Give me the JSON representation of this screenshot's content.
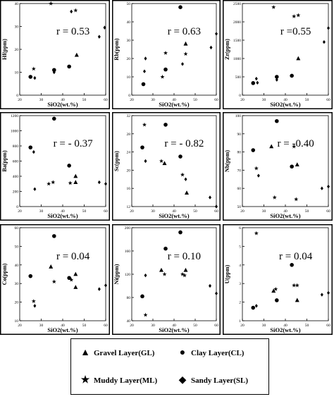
{
  "chart_data": [
    {
      "type": "scatter",
      "xlabel": "SiO2(wt.%)",
      "ylabel": "Hf(ppm)",
      "annotation": "r = 0.53",
      "xlim": [
        20,
        60
      ],
      "ylim": [
        0,
        40
      ],
      "xticks": [
        20,
        30,
        40,
        50,
        60
      ],
      "yticks": [
        0,
        10,
        20,
        30,
        40
      ],
      "series": [
        {
          "name": "Gravel Layer(GL)",
          "marker": "triangle",
          "x": [
            46.5
          ],
          "y": [
            17.5
          ]
        },
        {
          "name": "Clay Layer(CL)",
          "marker": "circle",
          "x": [
            25,
            36,
            43
          ],
          "y": [
            8,
            11,
            12.5
          ]
        },
        {
          "name": "Muddy Layer(ML)",
          "marker": "star",
          "x": [
            34.5,
            26.5,
            46
          ],
          "y": [
            40,
            11.5,
            37
          ]
        },
        {
          "name": "Sandy Layer(SL)",
          "marker": "diamond",
          "x": [
            36,
            27,
            44,
            57,
            59.5
          ],
          "y": [
            10,
            7.5,
            36.5,
            25.5,
            29.5
          ]
        }
      ]
    },
    {
      "type": "scatter",
      "xlabel": "SiO2(wt.%)",
      "ylabel": "Rb(ppm)",
      "annotation": "r = 0.63",
      "xlim": [
        20,
        60
      ],
      "ylim": [
        0,
        50
      ],
      "xticks": [
        20,
        30,
        40,
        50,
        60
      ],
      "yticks": [
        0,
        10,
        20,
        30,
        40,
        50
      ],
      "series": [
        {
          "name": "Gravel Layer(GL)",
          "marker": "triangle",
          "x": [
            45.5
          ],
          "y": [
            28
          ]
        },
        {
          "name": "Clay Layer(CL)",
          "marker": "circle",
          "x": [
            25.5,
            36,
            43
          ],
          "y": [
            6,
            14,
            48
          ]
        },
        {
          "name": "Muddy Layer(ML)",
          "marker": "star",
          "x": [
            36,
            34.5,
            45.5
          ],
          "y": [
            23,
            10,
            22.5
          ]
        },
        {
          "name": "Sandy Layer(SL)",
          "marker": "diamond",
          "x": [
            26.5,
            26,
            44,
            57.5,
            60
          ],
          "y": [
            20,
            13,
            17,
            26,
            33.5
          ]
        }
      ]
    },
    {
      "type": "scatter",
      "xlabel": "SiO2(wt.%)",
      "ylabel": "Zr(ppm)",
      "annotation": "r =0.55",
      "xlim": [
        20,
        60
      ],
      "ylim": [
        0,
        2500
      ],
      "xticks": [
        20,
        30,
        40,
        50,
        60
      ],
      "yticks": [
        0,
        500,
        1000,
        1500,
        2000,
        2500
      ],
      "series": [
        {
          "name": "Gravel Layer(GL)",
          "marker": "triangle",
          "x": [
            46
          ],
          "y": [
            1000
          ]
        },
        {
          "name": "Clay Layer(CL)",
          "marker": "circle",
          "x": [
            25,
            36,
            43
          ],
          "y": [
            330,
            500,
            530
          ]
        },
        {
          "name": "Muddy Layer(ML)",
          "marker": "star",
          "x": [
            34.5,
            44,
            46
          ],
          "y": [
            2400,
            2150,
            2180
          ]
        },
        {
          "name": "Sandy Layer(SL)",
          "marker": "diamond",
          "x": [
            26.5,
            27,
            36,
            58,
            60
          ],
          "y": [
            450,
            340,
            420,
            1450,
            1830
          ]
        }
      ]
    },
    {
      "type": "scatter",
      "xlabel": "SiO2(wt.%)",
      "ylabel": "Ba(ppm)",
      "annotation": "r = - 0.37",
      "xlim": [
        20,
        60
      ],
      "ylim": [
        0,
        1200
      ],
      "xticks": [
        20,
        30,
        40,
        50,
        60
      ],
      "yticks": [
        0,
        200,
        400,
        600,
        800,
        1000,
        1200
      ],
      "series": [
        {
          "name": "Gravel Layer(GL)",
          "marker": "triangle",
          "x": [
            46,
            46
          ],
          "y": [
            400,
            320
          ]
        },
        {
          "name": "Clay Layer(CL)",
          "marker": "circle",
          "x": [
            25,
            36,
            43
          ],
          "y": [
            780,
            1160,
            540
          ]
        },
        {
          "name": "Muddy Layer(ML)",
          "marker": "star",
          "x": [
            33.5,
            35.5,
            43.5
          ],
          "y": [
            300,
            320,
            310
          ]
        },
        {
          "name": "Sandy Layer(SL)",
          "marker": "diamond",
          "x": [
            26.5,
            27,
            57,
            60
          ],
          "y": [
            720,
            230,
            320,
            300
          ]
        }
      ]
    },
    {
      "type": "scatter",
      "xlabel": "SiO2(wt.%)",
      "ylabel": "Sc(ppm)",
      "annotation": "r = - 0.82",
      "xlim": [
        20,
        60
      ],
      "ylim": [
        12,
        32
      ],
      "xticks": [
        20,
        30,
        40,
        50,
        60
      ],
      "yticks": [
        12,
        16,
        20,
        24,
        28,
        32
      ],
      "series": [
        {
          "name": "Gravel Layer(GL)",
          "marker": "triangle",
          "x": [
            35.5,
            46
          ],
          "y": [
            21.5,
            15
          ]
        },
        {
          "name": "Clay Layer(CL)",
          "marker": "circle",
          "x": [
            25,
            36,
            43
          ],
          "y": [
            25,
            30,
            23
          ]
        },
        {
          "name": "Muddy Layer(ML)",
          "marker": "star",
          "x": [
            26,
            34,
            44
          ],
          "y": [
            30,
            22,
            19
          ]
        },
        {
          "name": "Sandy Layer(SL)",
          "marker": "diamond",
          "x": [
            26.5,
            45.5,
            57,
            60
          ],
          "y": [
            22,
            18,
            14,
            12
          ]
        }
      ]
    },
    {
      "type": "scatter",
      "xlabel": "SiO2(wt.%)",
      "ylabel": "Nb(ppm)",
      "annotation": "r = -0.40",
      "xlim": [
        20,
        60
      ],
      "ylim": [
        50,
        100
      ],
      "xticks": [
        20,
        30,
        40,
        50,
        60
      ],
      "yticks": [
        50,
        60,
        70,
        80,
        90,
        100
      ],
      "series": [
        {
          "name": "Gravel Layer(GL)",
          "marker": "triangle",
          "x": [
            33.5,
            45.5
          ],
          "y": [
            83,
            73
          ]
        },
        {
          "name": "Clay Layer(CL)",
          "marker": "circle",
          "x": [
            25,
            36,
            43
          ],
          "y": [
            81,
            97,
            72
          ]
        },
        {
          "name": "Muddy Layer(ML)",
          "marker": "star",
          "x": [
            26.5,
            35,
            44,
            45
          ],
          "y": [
            71,
            55,
            83,
            54
          ]
        },
        {
          "name": "Sandy Layer(SL)",
          "marker": "diamond",
          "x": [
            27.5,
            57,
            60
          ],
          "y": [
            67,
            60,
            61
          ]
        }
      ]
    },
    {
      "type": "scatter",
      "xlabel": "SiO2(wt.%)",
      "ylabel": "Co(ppm)",
      "annotation": "r = 0.04",
      "xlim": [
        20,
        60
      ],
      "ylim": [
        10,
        60
      ],
      "xticks": [
        20,
        30,
        40,
        50,
        60
      ],
      "yticks": [
        10,
        20,
        30,
        40,
        50,
        60
      ],
      "series": [
        {
          "name": "Gravel Layer(GL)",
          "marker": "triangle",
          "x": [
            34.5,
            46,
            46
          ],
          "y": [
            39,
            35,
            28
          ]
        },
        {
          "name": "Clay Layer(CL)",
          "marker": "circle",
          "x": [
            25,
            36,
            43
          ],
          "y": [
            34,
            55.5,
            33
          ]
        },
        {
          "name": "Muddy Layer(ML)",
          "marker": "star",
          "x": [
            26.5,
            36,
            44
          ],
          "y": [
            20.5,
            31,
            32
          ]
        },
        {
          "name": "Sandy Layer(SL)",
          "marker": "diamond",
          "x": [
            27,
            57,
            60
          ],
          "y": [
            18,
            27,
            29
          ]
        }
      ]
    },
    {
      "type": "scatter",
      "xlabel": "SiO2(wt.%)",
      "ylabel": "Ni(ppm)",
      "annotation": "r = 0.10",
      "xlim": [
        20,
        60
      ],
      "ylim": [
        40,
        200
      ],
      "xticks": [
        20,
        30,
        40,
        50,
        60
      ],
      "yticks": [
        40,
        80,
        120,
        160,
        200
      ],
      "series": [
        {
          "name": "Gravel Layer(GL)",
          "marker": "triangle",
          "x": [
            34,
            45.5
          ],
          "y": [
            127,
            127
          ]
        },
        {
          "name": "Clay Layer(CL)",
          "marker": "circle",
          "x": [
            25,
            36,
            43
          ],
          "y": [
            82,
            164,
            192
          ]
        },
        {
          "name": "Muddy Layer(ML)",
          "marker": "star",
          "x": [
            26.5,
            35.5,
            44,
            45
          ],
          "y": [
            50,
            120,
            120,
            118
          ]
        },
        {
          "name": "Sandy Layer(SL)",
          "marker": "diamond",
          "x": [
            26.5,
            57,
            60
          ],
          "y": [
            118,
            100,
            87
          ]
        }
      ]
    },
    {
      "type": "scatter",
      "xlabel": "SiO2(wt.%)",
      "ylabel": "U(ppm)",
      "annotation": "r = 0.04",
      "xlim": [
        20,
        60
      ],
      "ylim": [
        1,
        6
      ],
      "xticks": [
        20,
        30,
        40,
        50,
        60
      ],
      "yticks": [
        1,
        2,
        3,
        4,
        5,
        6
      ],
      "series": [
        {
          "name": "Gravel Layer(GL)",
          "marker": "triangle",
          "x": [
            34.5,
            45.5
          ],
          "y": [
            2.6,
            2.1
          ]
        },
        {
          "name": "Clay Layer(CL)",
          "marker": "circle",
          "x": [
            25,
            36,
            43
          ],
          "y": [
            1.7,
            2.1,
            4.0
          ]
        },
        {
          "name": "Muddy Layer(ML)",
          "marker": "star",
          "x": [
            26.5,
            35.5,
            44,
            45.5
          ],
          "y": [
            5.7,
            2.7,
            2.9,
            2.9
          ]
        },
        {
          "name": "Sandy Layer(SL)",
          "marker": "diamond",
          "x": [
            26.5,
            57,
            60
          ],
          "y": [
            1.8,
            2.4,
            2.5
          ]
        }
      ]
    }
  ],
  "legend": {
    "gravel": "Gravel Layer(GL)",
    "clay": "Clay Layer(CL)",
    "muddy": "Muddy Layer(ML)",
    "sandy": "Sandy Layer(SL)"
  }
}
